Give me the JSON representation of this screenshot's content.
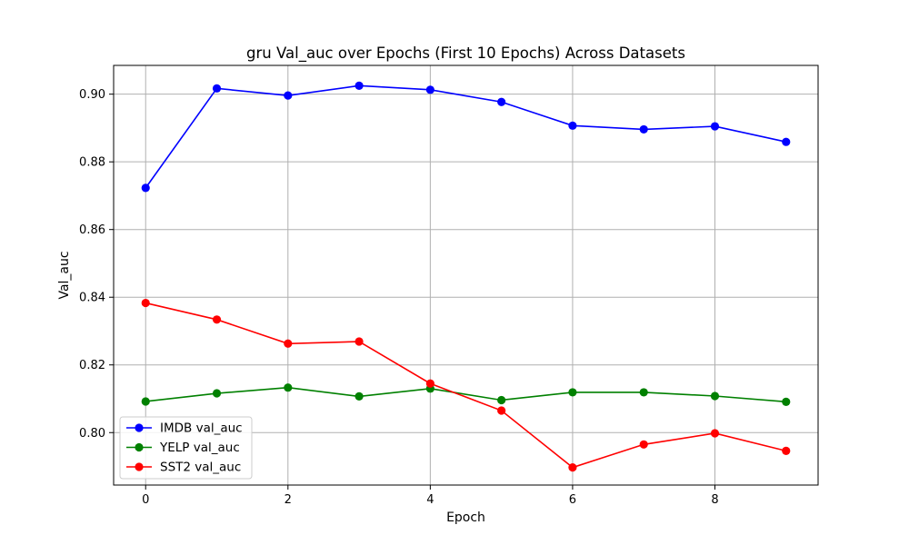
{
  "chart_data": {
    "type": "line",
    "title": "gru Val_auc over Epochs (First 10 Epochs) Across Datasets",
    "xlabel": "Epoch",
    "ylabel": "Val_auc",
    "x": [
      0,
      1,
      2,
      3,
      4,
      5,
      6,
      7,
      8,
      9
    ],
    "xlim": [
      -0.45,
      9.45
    ],
    "ylim": [
      0.7845,
      0.9085
    ],
    "xticks": [
      0,
      2,
      4,
      6,
      8
    ],
    "yticks": [
      0.8,
      0.82,
      0.84,
      0.86,
      0.88,
      0.9
    ],
    "ytick_labels": [
      "0.80",
      "0.82",
      "0.84",
      "0.86",
      "0.88",
      "0.90"
    ],
    "grid": true,
    "legend_position": "lower-left",
    "series": [
      {
        "name": "IMDB val_auc",
        "color": "#0000ff",
        "values": [
          0.8723,
          0.9017,
          0.8996,
          0.9025,
          0.9013,
          0.8977,
          0.8907,
          0.8896,
          0.8905,
          0.8859
        ]
      },
      {
        "name": "YELP val_auc",
        "color": "#008000",
        "values": [
          0.8092,
          0.8116,
          0.8133,
          0.8107,
          0.813,
          0.8096,
          0.8119,
          0.8119,
          0.8108,
          0.8091
        ]
      },
      {
        "name": "SST2 val_auc",
        "color": "#ff0000",
        "values": [
          0.8383,
          0.8334,
          0.8263,
          0.8269,
          0.8145,
          0.8065,
          0.7897,
          0.7965,
          0.7998,
          0.7946
        ]
      }
    ]
  }
}
